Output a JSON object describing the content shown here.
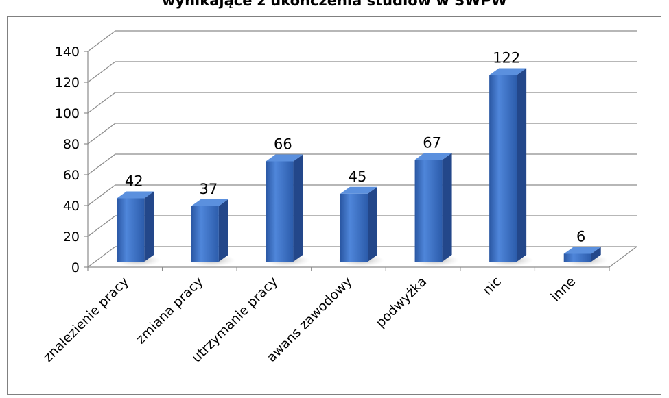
{
  "chart_data": {
    "type": "bar",
    "title": "wynikające z ukończenia studiów w SWPW",
    "categories": [
      "znalezienie pracy",
      "zmiana pracy",
      "utrzymanie pracy",
      "awans zawodowy",
      "podwyżka",
      "nic",
      "inne"
    ],
    "values": [
      42,
      37,
      66,
      45,
      67,
      122,
      6
    ],
    "ylim": [
      0,
      140
    ],
    "yticks": [
      "0",
      "20",
      "40",
      "60",
      "80",
      "100",
      "120",
      "140"
    ],
    "grid": true,
    "legend": "none",
    "bar_color": "#3a6fc4"
  }
}
